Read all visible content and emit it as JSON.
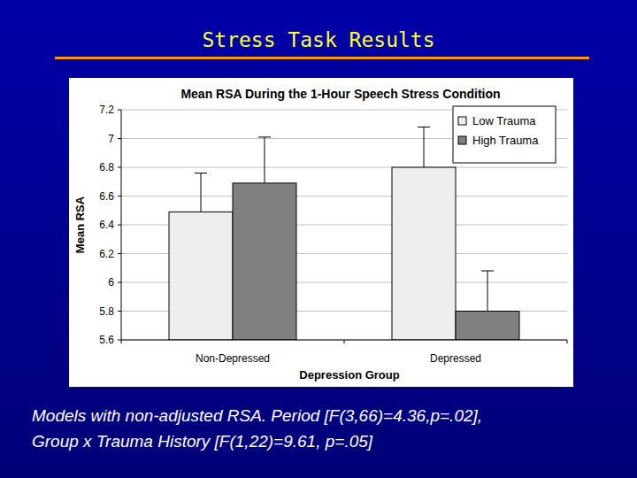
{
  "slide": {
    "title": "Stress Task Results",
    "caption": [
      "Models with non-adjusted RSA. Period [F(3,66)=4.36,p=.02],",
      "Group x Trauma History [F(1,22)=9.61, p=.05]"
    ]
  },
  "chart_data": {
    "type": "bar",
    "title": "Mean RSA During the 1-Hour Speech Stress Condition",
    "x_label": "Depression Group",
    "y_label": "Mean RSA",
    "categories": [
      "Non-Depressed",
      "Depressed"
    ],
    "series": [
      {
        "name": "Low Trauma",
        "color": "#eeeeee",
        "values": [
          6.49,
          6.8
        ],
        "errors": [
          0.27,
          0.28
        ]
      },
      {
        "name": "High Trauma",
        "color": "#808080",
        "values": [
          6.69,
          5.8
        ],
        "errors": [
          0.32,
          0.28
        ]
      }
    ],
    "ylim": [
      5.6,
      7.2
    ],
    "yticks": [
      5.6,
      5.8,
      6,
      6.2,
      6.4,
      6.6,
      6.8,
      7,
      7.2
    ],
    "grid": true,
    "legend": "upper right"
  }
}
